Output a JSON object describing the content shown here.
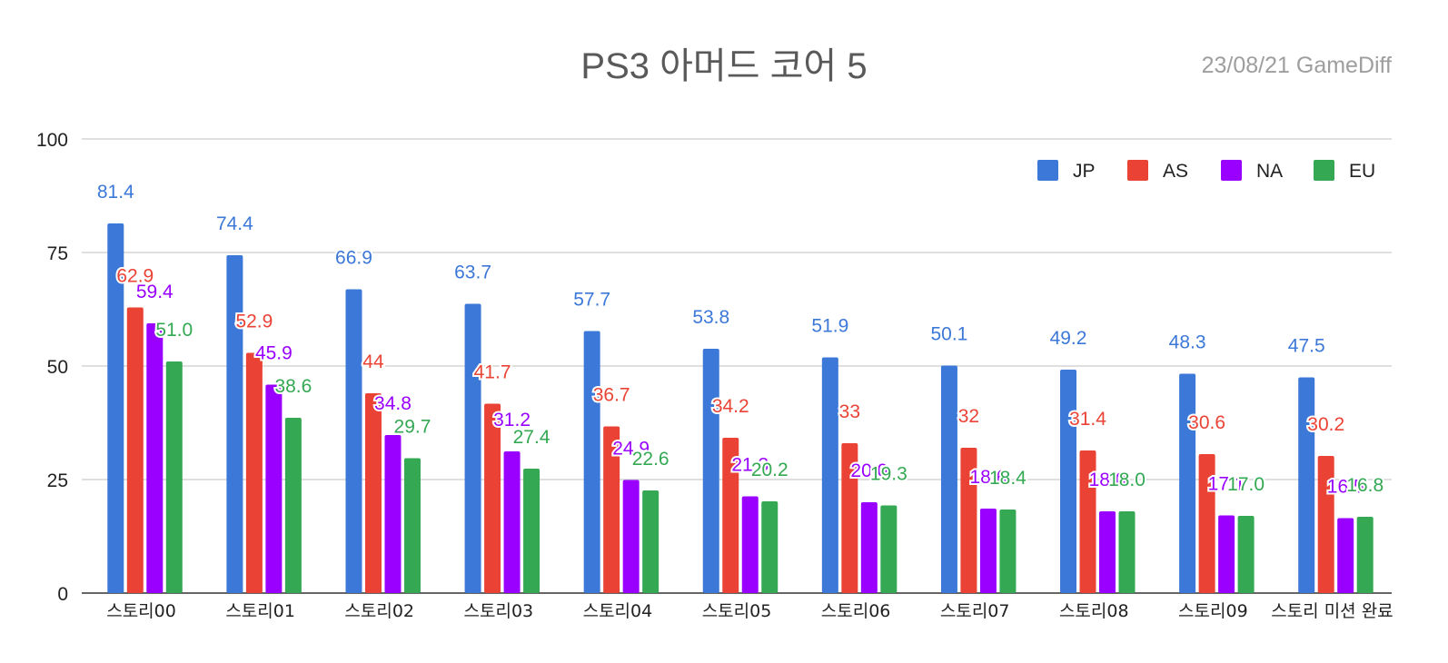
{
  "chart_data": {
    "type": "bar",
    "title": "PS3 아머드 코어 5",
    "subtitle": "23/08/21  GameDiff",
    "xlabel": "",
    "ylabel": "",
    "ylim": [
      0,
      100
    ],
    "yticks": [
      "0",
      "25",
      "50",
      "75",
      "100"
    ],
    "grid": true,
    "legend_position": "top-right",
    "categories": [
      "스토리00",
      "스토리01",
      "스토리02",
      "스토리03",
      "스토리04",
      "스토리05",
      "스토리06",
      "스토리07",
      "스토리08",
      "스토리09",
      "스토리 미션 완료"
    ],
    "series": [
      {
        "name": "JP",
        "color": "#3c78d8",
        "values": [
          81.4,
          74.4,
          66.9,
          63.7,
          57.7,
          53.8,
          51.9,
          50.1,
          49.2,
          48.3,
          47.5
        ],
        "labels": [
          "81.4",
          "74.4",
          "66.9",
          "63.7",
          "57.7",
          "53.8",
          "51.9",
          "50.1",
          "49.2",
          "48.3",
          "47.5"
        ]
      },
      {
        "name": "AS",
        "color": "#ea4335",
        "values": [
          62.9,
          52.9,
          44,
          41.7,
          36.7,
          34.2,
          33,
          32,
          31.4,
          30.6,
          30.2
        ],
        "labels": [
          "62.9",
          "52.9",
          "44",
          "41.7",
          "36.7",
          "34.2",
          "33",
          "32",
          "31.4",
          "30.6",
          "30.2"
        ]
      },
      {
        "name": "NA",
        "color": "#9900ff",
        "values": [
          59.4,
          45.9,
          34.8,
          31.2,
          24.9,
          21.3,
          20.0,
          18.6,
          18.0,
          17.1,
          16.5
        ],
        "labels": [
          "59.4",
          "45.9",
          "34.8",
          "31.2",
          "24.9",
          "21.3",
          "20.0",
          "18.6",
          "18.0",
          "17.1",
          "16.5"
        ]
      },
      {
        "name": "EU",
        "color": "#34a853",
        "values": [
          51.0,
          38.6,
          29.7,
          27.4,
          22.6,
          20.2,
          19.3,
          18.4,
          18.0,
          17.0,
          16.8
        ],
        "labels": [
          "51.0",
          "38.6",
          "29.7",
          "27.4",
          "22.6",
          "20.2",
          "19.3",
          "18.4",
          "18.0",
          "17.0",
          "16.8"
        ]
      }
    ]
  }
}
